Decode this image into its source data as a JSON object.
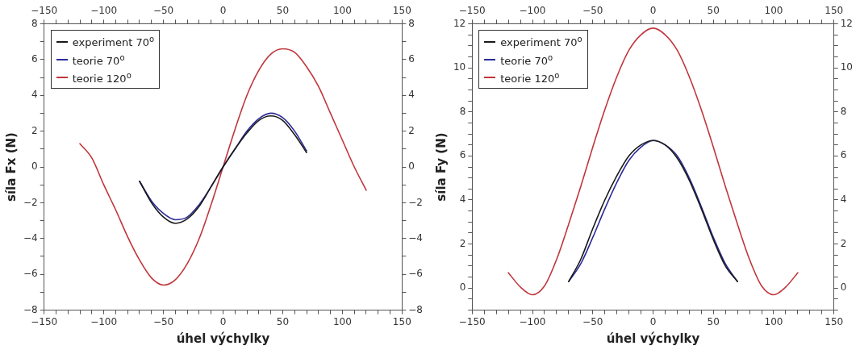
{
  "chart_data": [
    {
      "type": "line",
      "xlabel": "úhel výchylky",
      "ylabel": "síla Fx (N)",
      "legend": "top left",
      "grid": false,
      "marker": "none",
      "line_style": "solid",
      "xlim": [
        -150,
        150
      ],
      "ylim": [
        -8,
        8
      ],
      "xticks": [
        {
          "value": -150,
          "label": "−150"
        },
        {
          "value": -140,
          "label": null
        },
        {
          "value": -130,
          "label": null
        },
        {
          "value": -120,
          "label": null
        },
        {
          "value": -110,
          "label": null
        },
        {
          "value": -100,
          "label": "−100"
        },
        {
          "value": -90,
          "label": null
        },
        {
          "value": -80,
          "label": null
        },
        {
          "value": -70,
          "label": null
        },
        {
          "value": -60,
          "label": null
        },
        {
          "value": -50,
          "label": "−50"
        },
        {
          "value": -40,
          "label": null
        },
        {
          "value": -30,
          "label": null
        },
        {
          "value": -20,
          "label": null
        },
        {
          "value": -10,
          "label": null
        },
        0,
        {
          "value": 10,
          "label": null
        },
        {
          "value": 20,
          "label": null
        },
        {
          "value": 30,
          "label": null
        },
        {
          "value": 40,
          "label": null
        },
        50,
        {
          "value": 60,
          "label": null
        },
        {
          "value": 70,
          "label": null
        },
        {
          "value": 80,
          "label": null
        },
        {
          "value": 90,
          "label": null
        },
        100,
        {
          "value": 110,
          "label": null
        },
        {
          "value": 120,
          "label": null
        },
        {
          "value": 130,
          "label": null
        },
        {
          "value": 140,
          "label": null
        },
        150
      ],
      "x2lim": [
        -150,
        150
      ],
      "x2ticks": [
        {
          "value": -150,
          "label": "−150"
        },
        {
          "value": -140,
          "label": null
        },
        {
          "value": -130,
          "label": null
        },
        {
          "value": -120,
          "label": null
        },
        {
          "value": -110,
          "label": null
        },
        {
          "value": -100,
          "label": "−100"
        },
        {
          "value": -90,
          "label": null
        },
        {
          "value": -80,
          "label": null
        },
        {
          "value": -70,
          "label": null
        },
        {
          "value": -60,
          "label": null
        },
        {
          "value": -50,
          "label": "−50"
        },
        {
          "value": -40,
          "label": null
        },
        {
          "value": -30,
          "label": null
        },
        {
          "value": -20,
          "label": null
        },
        {
          "value": -10,
          "label": null
        },
        0,
        {
          "value": 10,
          "label": null
        },
        {
          "value": 20,
          "label": null
        },
        {
          "value": 30,
          "label": null
        },
        {
          "value": 40,
          "label": null
        },
        50,
        {
          "value": 60,
          "label": null
        },
        {
          "value": 70,
          "label": null
        },
        {
          "value": 80,
          "label": null
        },
        {
          "value": 90,
          "label": null
        },
        100,
        {
          "value": 110,
          "label": null
        },
        {
          "value": 120,
          "label": null
        },
        {
          "value": 130,
          "label": null
        },
        {
          "value": 140,
          "label": null
        },
        150
      ],
      "yticks": [
        {
          "value": -8,
          "label": "−8"
        },
        {
          "value": -7,
          "label": null
        },
        {
          "value": -6,
          "label": "−6"
        },
        {
          "value": -5,
          "label": null
        },
        {
          "value": -4,
          "label": "−4"
        },
        {
          "value": -3,
          "label": null
        },
        {
          "value": -2,
          "label": "−2"
        },
        {
          "value": -1,
          "label": null
        },
        0,
        {
          "value": 1,
          "label": null
        },
        2,
        {
          "value": 3,
          "label": null
        },
        4,
        {
          "value": 5,
          "label": null
        },
        6,
        {
          "value": 7,
          "label": null
        },
        8
      ],
      "y2lim": [
        -8,
        8
      ],
      "y2ticks": [
        {
          "value": -8,
          "label": "−8"
        },
        {
          "value": -7,
          "label": null
        },
        {
          "value": -6,
          "label": "−6"
        },
        {
          "value": -5,
          "label": null
        },
        {
          "value": -4,
          "label": "−4"
        },
        {
          "value": -3,
          "label": null
        },
        {
          "value": -2,
          "label": "−2"
        },
        {
          "value": -1,
          "label": null
        },
        0,
        {
          "value": 1,
          "label": null
        },
        2,
        {
          "value": 3,
          "label": null
        },
        4,
        {
          "value": 5,
          "label": null
        },
        6,
        {
          "value": 7,
          "label": null
        },
        8
      ],
      "series": [
        {
          "name": "experiment 70$^{o}$",
          "color": "#1a1a1a",
          "x": [
            -70,
            -60,
            -50,
            -40,
            -30,
            -20,
            -10,
            0,
            10,
            20,
            30,
            40,
            50,
            60,
            70
          ],
          "values": [
            -0.8,
            -2.0,
            -2.8,
            -3.15,
            -2.9,
            -2.2,
            -1.1,
            0,
            1.0,
            1.9,
            2.6,
            2.85,
            2.6,
            1.8,
            0.8
          ]
        },
        {
          "name": "teorie 70$^{o}$",
          "color": "#2b2b9a",
          "x": [
            -70,
            -60,
            -50,
            -40,
            -30,
            -20,
            -10,
            0,
            10,
            20,
            30,
            40,
            50,
            60,
            70
          ],
          "values": [
            -0.8,
            -1.9,
            -2.6,
            -2.95,
            -2.8,
            -2.1,
            -1.1,
            0,
            1.0,
            2.0,
            2.7,
            3.0,
            2.75,
            2.0,
            0.9
          ]
        },
        {
          "name": "teorie 120$^{o}$",
          "color": "#c0363c",
          "x": [
            -120,
            -110,
            -100,
            -90,
            -80,
            -70,
            -60,
            -50,
            -40,
            -30,
            -20,
            -10,
            0,
            10,
            20,
            30,
            40,
            50,
            60,
            70,
            80,
            90,
            100,
            110,
            120
          ],
          "values": [
            1.3,
            0.5,
            -1.0,
            -2.4,
            -3.9,
            -5.2,
            -6.2,
            -6.6,
            -6.3,
            -5.4,
            -4.0,
            -2.1,
            0,
            2.1,
            4.0,
            5.4,
            6.3,
            6.6,
            6.4,
            5.6,
            4.5,
            3.0,
            1.5,
            0.0,
            -1.3
          ]
        }
      ]
    },
    {
      "type": "line",
      "xlabel": "úhel výchylky",
      "ylabel": "síla Fy (N)",
      "legend": "top left",
      "grid": false,
      "marker": "none",
      "line_style": "solid",
      "xlim": [
        -150,
        150
      ],
      "ylim": [
        -1,
        12
      ],
      "xticks": [
        {
          "value": -150,
          "label": "−150"
        },
        {
          "value": -140,
          "label": null
        },
        {
          "value": -130,
          "label": null
        },
        {
          "value": -120,
          "label": null
        },
        {
          "value": -110,
          "label": null
        },
        {
          "value": -100,
          "label": "−100"
        },
        {
          "value": -90,
          "label": null
        },
        {
          "value": -80,
          "label": null
        },
        {
          "value": -70,
          "label": null
        },
        {
          "value": -60,
          "label": null
        },
        {
          "value": -50,
          "label": "−50"
        },
        {
          "value": -40,
          "label": null
        },
        {
          "value": -30,
          "label": null
        },
        {
          "value": -20,
          "label": null
        },
        {
          "value": -10,
          "label": null
        },
        0,
        {
          "value": 10,
          "label": null
        },
        {
          "value": 20,
          "label": null
        },
        {
          "value": 30,
          "label": null
        },
        {
          "value": 40,
          "label": null
        },
        50,
        {
          "value": 60,
          "label": null
        },
        {
          "value": 70,
          "label": null
        },
        {
          "value": 80,
          "label": null
        },
        {
          "value": 90,
          "label": null
        },
        100,
        {
          "value": 110,
          "label": null
        },
        {
          "value": 120,
          "label": null
        },
        {
          "value": 130,
          "label": null
        },
        {
          "value": 140,
          "label": null
        },
        150
      ],
      "x2lim": [
        -150,
        150
      ],
      "x2ticks": [
        {
          "value": -150,
          "label": "−150"
        },
        {
          "value": -140,
          "label": null
        },
        {
          "value": -130,
          "label": null
        },
        {
          "value": -120,
          "label": null
        },
        {
          "value": -110,
          "label": null
        },
        {
          "value": -100,
          "label": "−100"
        },
        {
          "value": -90,
          "label": null
        },
        {
          "value": -80,
          "label": null
        },
        {
          "value": -70,
          "label": null
        },
        {
          "value": -60,
          "label": null
        },
        {
          "value": -50,
          "label": "−50"
        },
        {
          "value": -40,
          "label": null
        },
        {
          "value": -30,
          "label": null
        },
        {
          "value": -20,
          "label": null
        },
        {
          "value": -10,
          "label": null
        },
        0,
        {
          "value": 10,
          "label": null
        },
        {
          "value": 20,
          "label": null
        },
        {
          "value": 30,
          "label": null
        },
        {
          "value": 40,
          "label": null
        },
        50,
        {
          "value": 60,
          "label": null
        },
        {
          "value": 70,
          "label": null
        },
        {
          "value": 80,
          "label": null
        },
        {
          "value": 90,
          "label": null
        },
        100,
        {
          "value": 110,
          "label": null
        },
        {
          "value": 120,
          "label": null
        },
        {
          "value": 130,
          "label": null
        },
        {
          "value": 140,
          "label": null
        },
        150
      ],
      "yticks": [
        {
          "value": -1,
          "label": null
        },
        {
          "value": -0.5,
          "label": null
        },
        0,
        {
          "value": 0.5,
          "label": null
        },
        {
          "value": 1,
          "label": null
        },
        {
          "value": 1.5,
          "label": null
        },
        2,
        {
          "value": 2.5,
          "label": null
        },
        {
          "value": 3,
          "label": null
        },
        {
          "value": 3.5,
          "label": null
        },
        4,
        {
          "value": 4.5,
          "label": null
        },
        {
          "value": 5,
          "label": null
        },
        {
          "value": 5.5,
          "label": null
        },
        6,
        {
          "value": 6.5,
          "label": null
        },
        {
          "value": 7,
          "label": null
        },
        {
          "value": 7.5,
          "label": null
        },
        8,
        {
          "value": 8.5,
          "label": null
        },
        {
          "value": 9,
          "label": null
        },
        {
          "value": 9.5,
          "label": null
        },
        10,
        {
          "value": 10.5,
          "label": null
        },
        {
          "value": 11,
          "label": null
        },
        {
          "value": 11.5,
          "label": null
        },
        12
      ],
      "y2lim": [
        -1,
        12
      ],
      "y2ticks": [
        {
          "value": -1,
          "label": null
        },
        {
          "value": -0.5,
          "label": null
        },
        0,
        {
          "value": 0.5,
          "label": null
        },
        {
          "value": 1,
          "label": null
        },
        {
          "value": 1.5,
          "label": null
        },
        2,
        {
          "value": 2.5,
          "label": null
        },
        {
          "value": 3,
          "label": null
        },
        {
          "value": 3.5,
          "label": null
        },
        4,
        {
          "value": 4.5,
          "label": null
        },
        {
          "value": 5,
          "label": null
        },
        {
          "value": 5.5,
          "label": null
        },
        6,
        {
          "value": 6.5,
          "label": null
        },
        {
          "value": 7,
          "label": null
        },
        {
          "value": 7.5,
          "label": null
        },
        8,
        {
          "value": 8.5,
          "label": null
        },
        {
          "value": 9,
          "label": null
        },
        {
          "value": 9.5,
          "label": null
        },
        10,
        {
          "value": 10.5,
          "label": null
        },
        {
          "value": 11,
          "label": null
        },
        {
          "value": 11.5,
          "label": null
        },
        12
      ],
      "series": [
        {
          "name": "experiment 70$^{o}$",
          "color": "#1a1a1a",
          "x": [
            -70,
            -60,
            -50,
            -40,
            -30,
            -20,
            -10,
            0,
            10,
            20,
            30,
            40,
            50,
            60,
            70
          ],
          "values": [
            0.3,
            1.3,
            2.7,
            4.0,
            5.1,
            6.0,
            6.5,
            6.7,
            6.5,
            5.9,
            4.9,
            3.6,
            2.2,
            1.0,
            0.3
          ]
        },
        {
          "name": "teorie 70$^{o}$",
          "color": "#2b2b9a",
          "x": [
            -70,
            -60,
            -50,
            -40,
            -30,
            -20,
            -10,
            0,
            10,
            20,
            30,
            40,
            50,
            60,
            70
          ],
          "values": [
            0.3,
            1.1,
            2.3,
            3.6,
            4.8,
            5.8,
            6.4,
            6.7,
            6.5,
            6.0,
            5.0,
            3.7,
            2.3,
            1.1,
            0.3
          ]
        },
        {
          "name": "teorie 120$^{o}$",
          "color": "#c0363c",
          "x": [
            -120,
            -110,
            -100,
            -90,
            -80,
            -70,
            -60,
            -50,
            -40,
            -30,
            -20,
            -10,
            0,
            10,
            20,
            30,
            40,
            50,
            60,
            70,
            80,
            90,
            100,
            110,
            120
          ],
          "values": [
            0.7,
            0.05,
            -0.3,
            0.1,
            1.3,
            2.9,
            4.6,
            6.4,
            8.1,
            9.6,
            10.8,
            11.5,
            11.8,
            11.5,
            10.8,
            9.6,
            8.1,
            6.4,
            4.6,
            2.9,
            1.3,
            0.1,
            -0.3,
            0.05,
            0.7
          ]
        }
      ]
    }
  ]
}
